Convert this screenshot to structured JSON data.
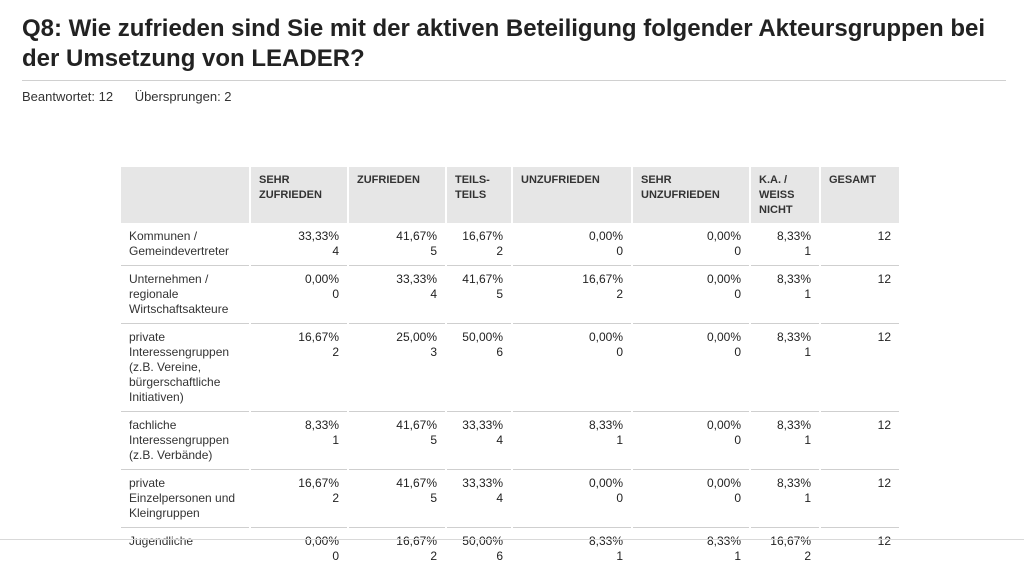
{
  "title": "Q8: Wie zufrieden sind Sie mit der aktiven Beteiligung folgender Akteursgruppen bei der Umsetzung von LEADER?",
  "answered": "Beantwortet: 12",
  "skipped": "Übersprungen: 2",
  "columns": [
    "SEHR ZUFRIEDEN",
    "ZUFRIEDEN",
    "TEILS-TEILS",
    "UNZUFRIEDEN",
    "SEHR UNZUFRIEDEN",
    "K.A. / WEISS NICHT",
    "GESAMT"
  ],
  "rows": [
    {
      "label": "Kommunen / Gemeindevertreter",
      "cells": [
        [
          "33,33%",
          "4"
        ],
        [
          "41,67%",
          "5"
        ],
        [
          "16,67%",
          "2"
        ],
        [
          "0,00%",
          "0"
        ],
        [
          "0,00%",
          "0"
        ],
        [
          "8,33%",
          "1"
        ]
      ],
      "total": "12"
    },
    {
      "label": "Unternehmen / regionale Wirtschaftsakteure",
      "cells": [
        [
          "0,00%",
          "0"
        ],
        [
          "33,33%",
          "4"
        ],
        [
          "41,67%",
          "5"
        ],
        [
          "16,67%",
          "2"
        ],
        [
          "0,00%",
          "0"
        ],
        [
          "8,33%",
          "1"
        ]
      ],
      "total": "12"
    },
    {
      "label": "private Interessengruppen (z.B. Vereine, bürgerschaftliche Initiativen)",
      "cells": [
        [
          "16,67%",
          "2"
        ],
        [
          "25,00%",
          "3"
        ],
        [
          "50,00%",
          "6"
        ],
        [
          "0,00%",
          "0"
        ],
        [
          "0,00%",
          "0"
        ],
        [
          "8,33%",
          "1"
        ]
      ],
      "total": "12"
    },
    {
      "label": "fachliche Interessengruppen (z.B. Verbände)",
      "cells": [
        [
          "8,33%",
          "1"
        ],
        [
          "41,67%",
          "5"
        ],
        [
          "33,33%",
          "4"
        ],
        [
          "8,33%",
          "1"
        ],
        [
          "0,00%",
          "0"
        ],
        [
          "8,33%",
          "1"
        ]
      ],
      "total": "12"
    },
    {
      "label": "private Einzelpersonen und Kleingruppen",
      "cells": [
        [
          "16,67%",
          "2"
        ],
        [
          "41,67%",
          "5"
        ],
        [
          "33,33%",
          "4"
        ],
        [
          "0,00%",
          "0"
        ],
        [
          "0,00%",
          "0"
        ],
        [
          "8,33%",
          "1"
        ]
      ],
      "total": "12"
    },
    {
      "label": "Jugendliche",
      "cells": [
        [
          "0,00%",
          "0"
        ],
        [
          "16,67%",
          "2"
        ],
        [
          "50,00%",
          "6"
        ],
        [
          "8,33%",
          "1"
        ],
        [
          "8,33%",
          "1"
        ],
        [
          "16,67%",
          "2"
        ]
      ],
      "total": "12"
    }
  ]
}
